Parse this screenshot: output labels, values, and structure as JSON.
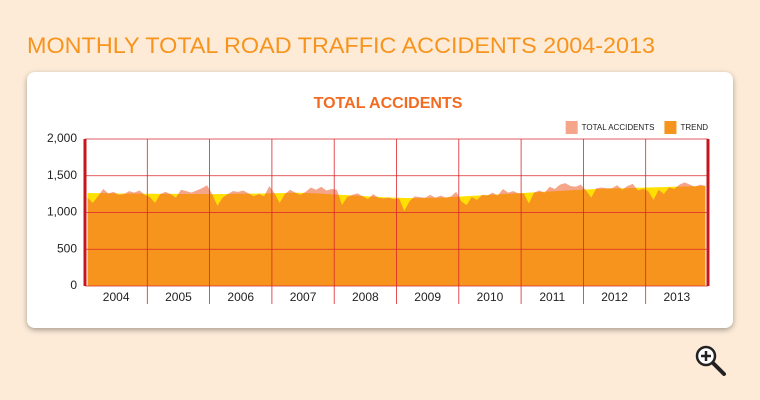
{
  "page_title": "MONTHLY TOTAL ROAD TRAFFIC ACCIDENTS 2004-2013",
  "chart_data": {
    "type": "area",
    "title": "TOTAL ACCIDENTS",
    "categories": [
      "2004",
      null,
      null,
      null,
      null,
      null,
      null,
      null,
      null,
      null,
      null,
      null,
      "2005",
      null,
      null,
      null,
      null,
      null,
      null,
      null,
      null,
      null,
      null,
      null,
      "2006",
      null,
      null,
      null,
      null,
      null,
      null,
      null,
      null,
      null,
      null,
      null,
      "2007",
      null,
      null,
      null,
      null,
      null,
      null,
      null,
      null,
      null,
      null,
      null,
      "2008",
      null,
      null,
      null,
      null,
      null,
      null,
      null,
      null,
      null,
      null,
      null,
      "2009",
      null,
      null,
      null,
      null,
      null,
      null,
      null,
      null,
      null,
      null,
      null,
      "2010",
      null,
      null,
      null,
      null,
      null,
      null,
      null,
      null,
      null,
      null,
      null,
      "2011",
      null,
      null,
      null,
      null,
      null,
      null,
      null,
      null,
      null,
      null,
      null,
      "2012",
      null,
      null,
      null,
      null,
      null,
      null,
      null,
      null,
      null,
      null,
      null,
      "2013",
      null,
      null,
      null,
      null,
      null,
      null,
      null,
      null,
      null,
      null,
      null
    ],
    "series": [
      {
        "name": "TOTAL ACCIDENTS",
        "color": "#f4a58a",
        "values": [
          1200,
          1130,
          1220,
          1320,
          1260,
          1280,
          1240,
          1250,
          1290,
          1270,
          1300,
          1240,
          1210,
          1130,
          1250,
          1280,
          1250,
          1200,
          1310,
          1290,
          1270,
          1300,
          1330,
          1370,
          1250,
          1090,
          1200,
          1250,
          1290,
          1280,
          1300,
          1260,
          1220,
          1250,
          1220,
          1360,
          1260,
          1130,
          1250,
          1310,
          1270,
          1240,
          1280,
          1340,
          1310,
          1350,
          1300,
          1320,
          1310,
          1100,
          1210,
          1240,
          1260,
          1220,
          1180,
          1250,
          1200,
          1190,
          1200,
          1180,
          1190,
          1020,
          1150,
          1220,
          1210,
          1200,
          1240,
          1200,
          1230,
          1200,
          1220,
          1280,
          1150,
          1100,
          1210,
          1170,
          1240,
          1230,
          1270,
          1230,
          1320,
          1270,
          1290,
          1260,
          1260,
          1120,
          1270,
          1300,
          1270,
          1350,
          1320,
          1380,
          1400,
          1360,
          1350,
          1380,
          1300,
          1200,
          1330,
          1340,
          1330,
          1330,
          1370,
          1310,
          1360,
          1390,
          1300,
          1320,
          1290,
          1170,
          1310,
          1250,
          1340,
          1320,
          1380,
          1410,
          1380,
          1350,
          1380,
          1360
        ]
      },
      {
        "name": "TREND",
        "color": "#f7941d",
        "below_color": "#ffe000",
        "values": [
          1265,
          1264,
          1263,
          1262,
          1261,
          1260,
          1259,
          1258,
          1257,
          1256,
          1256,
          1255,
          1255,
          1255,
          1254,
          1254,
          1253,
          1253,
          1252,
          1252,
          1252,
          1251,
          1251,
          1250,
          1250,
          1250,
          1251,
          1252,
          1253,
          1254,
          1255,
          1256,
          1257,
          1258,
          1259,
          1260,
          1262,
          1264,
          1266,
          1268,
          1268,
          1268,
          1266,
          1264,
          1260,
          1256,
          1252,
          1248,
          1244,
          1240,
          1236,
          1232,
          1228,
          1224,
          1220,
          1216,
          1212,
          1208,
          1205,
          1202,
          1200,
          1198,
          1197,
          1196,
          1196,
          1197,
          1198,
          1200,
          1203,
          1206,
          1210,
          1214,
          1218,
          1222,
          1226,
          1230,
          1234,
          1238,
          1242,
          1246,
          1250,
          1254,
          1258,
          1262,
          1266,
          1270,
          1274,
          1278,
          1282,
          1286,
          1290,
          1294,
          1298,
          1302,
          1306,
          1310,
          1313,
          1316,
          1319,
          1322,
          1324,
          1326,
          1328,
          1330,
          1332,
          1334,
          1336,
          1338,
          1340,
          1342,
          1344,
          1346,
          1348,
          1350,
          1352,
          1354,
          1356,
          1358,
          1360,
          1362
        ]
      }
    ],
    "ylim": [
      0,
      2000
    ],
    "yticks": [
      0,
      500,
      {
        "value": 1000,
        "label": "1,000"
      },
      {
        "value": 1500,
        "label": "1,500"
      },
      {
        "value": 2000,
        "label": "2,000"
      }
    ],
    "grid": true,
    "grid_color": "#d9262b",
    "legend": "top-right"
  }
}
